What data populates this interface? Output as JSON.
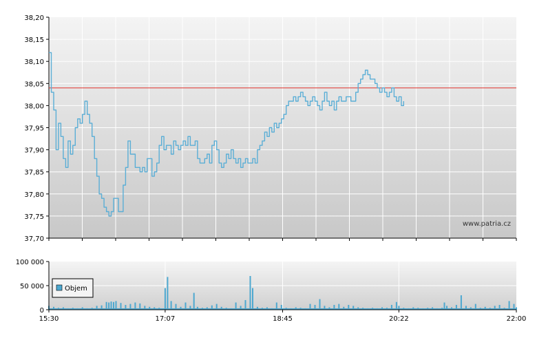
{
  "watermark": "www.patria.cz",
  "colors": {
    "price_line": "#5aaed6",
    "reference_line": "#e0302a",
    "volume_bar": "#4da8d0",
    "bg_top": "#f4f4f4",
    "bg_bottom": "#c8c8c8",
    "grid": "#ffffff"
  },
  "chart_data": [
    {
      "type": "line",
      "name": "price",
      "ylim": [
        37.7,
        38.2
      ],
      "y_ticks": [
        "38,20",
        "38,15",
        "38,10",
        "38,05",
        "38,00",
        "37,95",
        "37,90",
        "37,85",
        "37,80",
        "37,75",
        "37,70"
      ],
      "x_range": [
        "15:30",
        "22:00"
      ],
      "reference_value": 38.04,
      "grid": true,
      "points": [
        [
          "15:30",
          38.12
        ],
        [
          "15:32",
          38.03
        ],
        [
          "15:34",
          37.99
        ],
        [
          "15:36",
          37.9
        ],
        [
          "15:38",
          37.96
        ],
        [
          "15:40",
          37.93
        ],
        [
          "15:42",
          37.88
        ],
        [
          "15:44",
          37.86
        ],
        [
          "15:46",
          37.92
        ],
        [
          "15:48",
          37.89
        ],
        [
          "15:50",
          37.91
        ],
        [
          "15:52",
          37.95
        ],
        [
          "15:54",
          37.97
        ],
        [
          "15:56",
          37.96
        ],
        [
          "15:58",
          37.98
        ],
        [
          "16:00",
          38.01
        ],
        [
          "16:02",
          37.98
        ],
        [
          "16:04",
          37.96
        ],
        [
          "16:06",
          37.93
        ],
        [
          "16:08",
          37.88
        ],
        [
          "16:10",
          37.84
        ],
        [
          "16:12",
          37.8
        ],
        [
          "16:14",
          37.79
        ],
        [
          "16:16",
          37.77
        ],
        [
          "16:18",
          37.76
        ],
        [
          "16:20",
          37.75
        ],
        [
          "16:22",
          37.76
        ],
        [
          "16:24",
          37.79
        ],
        [
          "16:26",
          37.79
        ],
        [
          "16:28",
          37.76
        ],
        [
          "16:30",
          37.76
        ],
        [
          "16:32",
          37.82
        ],
        [
          "16:34",
          37.86
        ],
        [
          "16:36",
          37.92
        ],
        [
          "16:38",
          37.89
        ],
        [
          "16:40",
          37.89
        ],
        [
          "16:42",
          37.86
        ],
        [
          "16:44",
          37.86
        ],
        [
          "16:46",
          37.85
        ],
        [
          "16:48",
          37.86
        ],
        [
          "16:50",
          37.85
        ],
        [
          "16:52",
          37.88
        ],
        [
          "16:54",
          37.88
        ],
        [
          "16:56",
          37.84
        ],
        [
          "16:58",
          37.85
        ],
        [
          "17:00",
          37.87
        ],
        [
          "17:02",
          37.91
        ],
        [
          "17:04",
          37.93
        ],
        [
          "17:06",
          37.9
        ],
        [
          "17:08",
          37.91
        ],
        [
          "17:10",
          37.91
        ],
        [
          "17:12",
          37.89
        ],
        [
          "17:14",
          37.92
        ],
        [
          "17:16",
          37.91
        ],
        [
          "17:18",
          37.9
        ],
        [
          "17:20",
          37.91
        ],
        [
          "17:22",
          37.92
        ],
        [
          "17:24",
          37.91
        ],
        [
          "17:26",
          37.93
        ],
        [
          "17:28",
          37.91
        ],
        [
          "17:30",
          37.91
        ],
        [
          "17:32",
          37.92
        ],
        [
          "17:34",
          37.88
        ],
        [
          "17:36",
          37.87
        ],
        [
          "17:38",
          37.87
        ],
        [
          "17:40",
          37.88
        ],
        [
          "17:42",
          37.89
        ],
        [
          "17:44",
          37.87
        ],
        [
          "17:46",
          37.91
        ],
        [
          "17:48",
          37.92
        ],
        [
          "17:50",
          37.9
        ],
        [
          "17:52",
          37.87
        ],
        [
          "17:54",
          37.86
        ],
        [
          "17:56",
          37.87
        ],
        [
          "17:58",
          37.89
        ],
        [
          "18:00",
          37.88
        ],
        [
          "18:02",
          37.9
        ],
        [
          "18:04",
          37.88
        ],
        [
          "18:06",
          37.87
        ],
        [
          "18:08",
          37.88
        ],
        [
          "18:10",
          37.86
        ],
        [
          "18:12",
          37.87
        ],
        [
          "18:14",
          37.88
        ],
        [
          "18:16",
          37.87
        ],
        [
          "18:18",
          37.87
        ],
        [
          "18:20",
          37.88
        ],
        [
          "18:22",
          37.87
        ],
        [
          "18:24",
          37.9
        ],
        [
          "18:26",
          37.91
        ],
        [
          "18:28",
          37.92
        ],
        [
          "18:30",
          37.94
        ],
        [
          "18:32",
          37.93
        ],
        [
          "18:34",
          37.95
        ],
        [
          "18:36",
          37.94
        ],
        [
          "18:38",
          37.96
        ],
        [
          "18:40",
          37.95
        ],
        [
          "18:42",
          37.96
        ],
        [
          "18:44",
          37.97
        ],
        [
          "18:46",
          37.98
        ],
        [
          "18:48",
          38.0
        ],
        [
          "18:50",
          38.01
        ],
        [
          "18:52",
          38.01
        ],
        [
          "18:54",
          38.02
        ],
        [
          "18:56",
          38.01
        ],
        [
          "18:58",
          38.02
        ],
        [
          "19:00",
          38.03
        ],
        [
          "19:02",
          38.02
        ],
        [
          "19:04",
          38.01
        ],
        [
          "19:06",
          38.0
        ],
        [
          "19:08",
          38.01
        ],
        [
          "19:10",
          38.02
        ],
        [
          "19:12",
          38.01
        ],
        [
          "19:14",
          38.0
        ],
        [
          "19:16",
          37.99
        ],
        [
          "19:18",
          38.01
        ],
        [
          "19:20",
          38.03
        ],
        [
          "19:22",
          38.01
        ],
        [
          "19:24",
          38.0
        ],
        [
          "19:26",
          38.01
        ],
        [
          "19:28",
          37.99
        ],
        [
          "19:30",
          38.01
        ],
        [
          "19:32",
          38.02
        ],
        [
          "19:34",
          38.01
        ],
        [
          "19:36",
          38.01
        ],
        [
          "19:38",
          38.02
        ],
        [
          "19:40",
          38.02
        ],
        [
          "19:42",
          38.01
        ],
        [
          "19:44",
          38.01
        ],
        [
          "19:46",
          38.03
        ],
        [
          "19:48",
          38.05
        ],
        [
          "19:50",
          38.06
        ],
        [
          "19:52",
          38.07
        ],
        [
          "19:54",
          38.08
        ],
        [
          "19:56",
          38.07
        ],
        [
          "19:58",
          38.06
        ],
        [
          "20:00",
          38.06
        ],
        [
          "20:02",
          38.05
        ],
        [
          "20:04",
          38.04
        ],
        [
          "20:06",
          38.03
        ],
        [
          "20:08",
          38.04
        ],
        [
          "20:10",
          38.03
        ],
        [
          "20:12",
          38.02
        ],
        [
          "20:14",
          38.03
        ],
        [
          "20:16",
          38.04
        ],
        [
          "20:18",
          38.02
        ],
        [
          "20:20",
          38.01
        ],
        [
          "20:22",
          38.02
        ],
        [
          "20:24",
          38.0
        ],
        [
          "20:26",
          38.01
        ]
      ]
    },
    {
      "type": "bar",
      "name": "volume",
      "ylim": [
        0,
        100000
      ],
      "y_ticks": [
        "100 000",
        "50 000",
        "0"
      ],
      "x_ticks": [
        "15:30",
        "17:07",
        "18:45",
        "20:22",
        "22:00"
      ],
      "x_range": [
        "15:30",
        "22:00"
      ],
      "legend": {
        "label": "Objem",
        "position": "top-left"
      },
      "bars": [
        [
          "15:30",
          8000
        ],
        [
          "15:34",
          6000
        ],
        [
          "15:38",
          4000
        ],
        [
          "15:42",
          5000
        ],
        [
          "15:46",
          3000
        ],
        [
          "15:50",
          4000
        ],
        [
          "15:54",
          3000
        ],
        [
          "15:58",
          5000
        ],
        [
          "16:02",
          3000
        ],
        [
          "16:06",
          4000
        ],
        [
          "16:10",
          8000
        ],
        [
          "16:14",
          9000
        ],
        [
          "16:18",
          16000
        ],
        [
          "16:20",
          15000
        ],
        [
          "16:22",
          17000
        ],
        [
          "16:24",
          16000
        ],
        [
          "16:26",
          18000
        ],
        [
          "16:30",
          14000
        ],
        [
          "16:34",
          10000
        ],
        [
          "16:38",
          12000
        ],
        [
          "16:42",
          15000
        ],
        [
          "16:46",
          13000
        ],
        [
          "16:50",
          8000
        ],
        [
          "16:54",
          6000
        ],
        [
          "16:58",
          5000
        ],
        [
          "17:02",
          4000
        ],
        [
          "17:07",
          45000
        ],
        [
          "17:09",
          68000
        ],
        [
          "17:12",
          18000
        ],
        [
          "17:16",
          12000
        ],
        [
          "17:20",
          6000
        ],
        [
          "17:24",
          15000
        ],
        [
          "17:28",
          8000
        ],
        [
          "17:31",
          35000
        ],
        [
          "17:34",
          6000
        ],
        [
          "17:38",
          4000
        ],
        [
          "17:42",
          5000
        ],
        [
          "17:46",
          9000
        ],
        [
          "17:50",
          12000
        ],
        [
          "17:54",
          6000
        ],
        [
          "17:58",
          4000
        ],
        [
          "18:02",
          3000
        ],
        [
          "18:06",
          15000
        ],
        [
          "18:10",
          8000
        ],
        [
          "18:14",
          20000
        ],
        [
          "18:18",
          70000
        ],
        [
          "18:20",
          45000
        ],
        [
          "18:24",
          6000
        ],
        [
          "18:28",
          4000
        ],
        [
          "18:32",
          5000
        ],
        [
          "18:36",
          3000
        ],
        [
          "18:40",
          15000
        ],
        [
          "18:44",
          10000
        ],
        [
          "18:48",
          4000
        ],
        [
          "18:52",
          3000
        ],
        [
          "18:56",
          5000
        ],
        [
          "19:00",
          4000
        ],
        [
          "19:04",
          3000
        ],
        [
          "19:08",
          12000
        ],
        [
          "19:12",
          10000
        ],
        [
          "19:16",
          22000
        ],
        [
          "19:20",
          8000
        ],
        [
          "19:24",
          5000
        ],
        [
          "19:28",
          10000
        ],
        [
          "19:32",
          12000
        ],
        [
          "19:36",
          6000
        ],
        [
          "19:40",
          10000
        ],
        [
          "19:44",
          8000
        ],
        [
          "19:48",
          5000
        ],
        [
          "19:52",
          4000
        ],
        [
          "19:56",
          3000
        ],
        [
          "20:00",
          4000
        ],
        [
          "20:04",
          3000
        ],
        [
          "20:08",
          5000
        ],
        [
          "20:12",
          4000
        ],
        [
          "20:16",
          10000
        ],
        [
          "20:20",
          16000
        ],
        [
          "20:22",
          8000
        ],
        [
          "20:26",
          4000
        ],
        [
          "20:30",
          3000
        ],
        [
          "20:34",
          5000
        ],
        [
          "20:38",
          4000
        ],
        [
          "20:42",
          3000
        ],
        [
          "20:46",
          4000
        ],
        [
          "20:50",
          5000
        ],
        [
          "20:54",
          3000
        ],
        [
          "20:58",
          4000
        ],
        [
          "21:00",
          15000
        ],
        [
          "21:02",
          8000
        ],
        [
          "21:06",
          5000
        ],
        [
          "21:10",
          10000
        ],
        [
          "21:14",
          30000
        ],
        [
          "21:18",
          8000
        ],
        [
          "21:22",
          5000
        ],
        [
          "21:26",
          12000
        ],
        [
          "21:30",
          4000
        ],
        [
          "21:34",
          6000
        ],
        [
          "21:38",
          4000
        ],
        [
          "21:42",
          8000
        ],
        [
          "21:46",
          10000
        ],
        [
          "21:50",
          4000
        ],
        [
          "21:54",
          18000
        ],
        [
          "21:58",
          12000
        ],
        [
          "22:00",
          5000
        ]
      ]
    }
  ]
}
